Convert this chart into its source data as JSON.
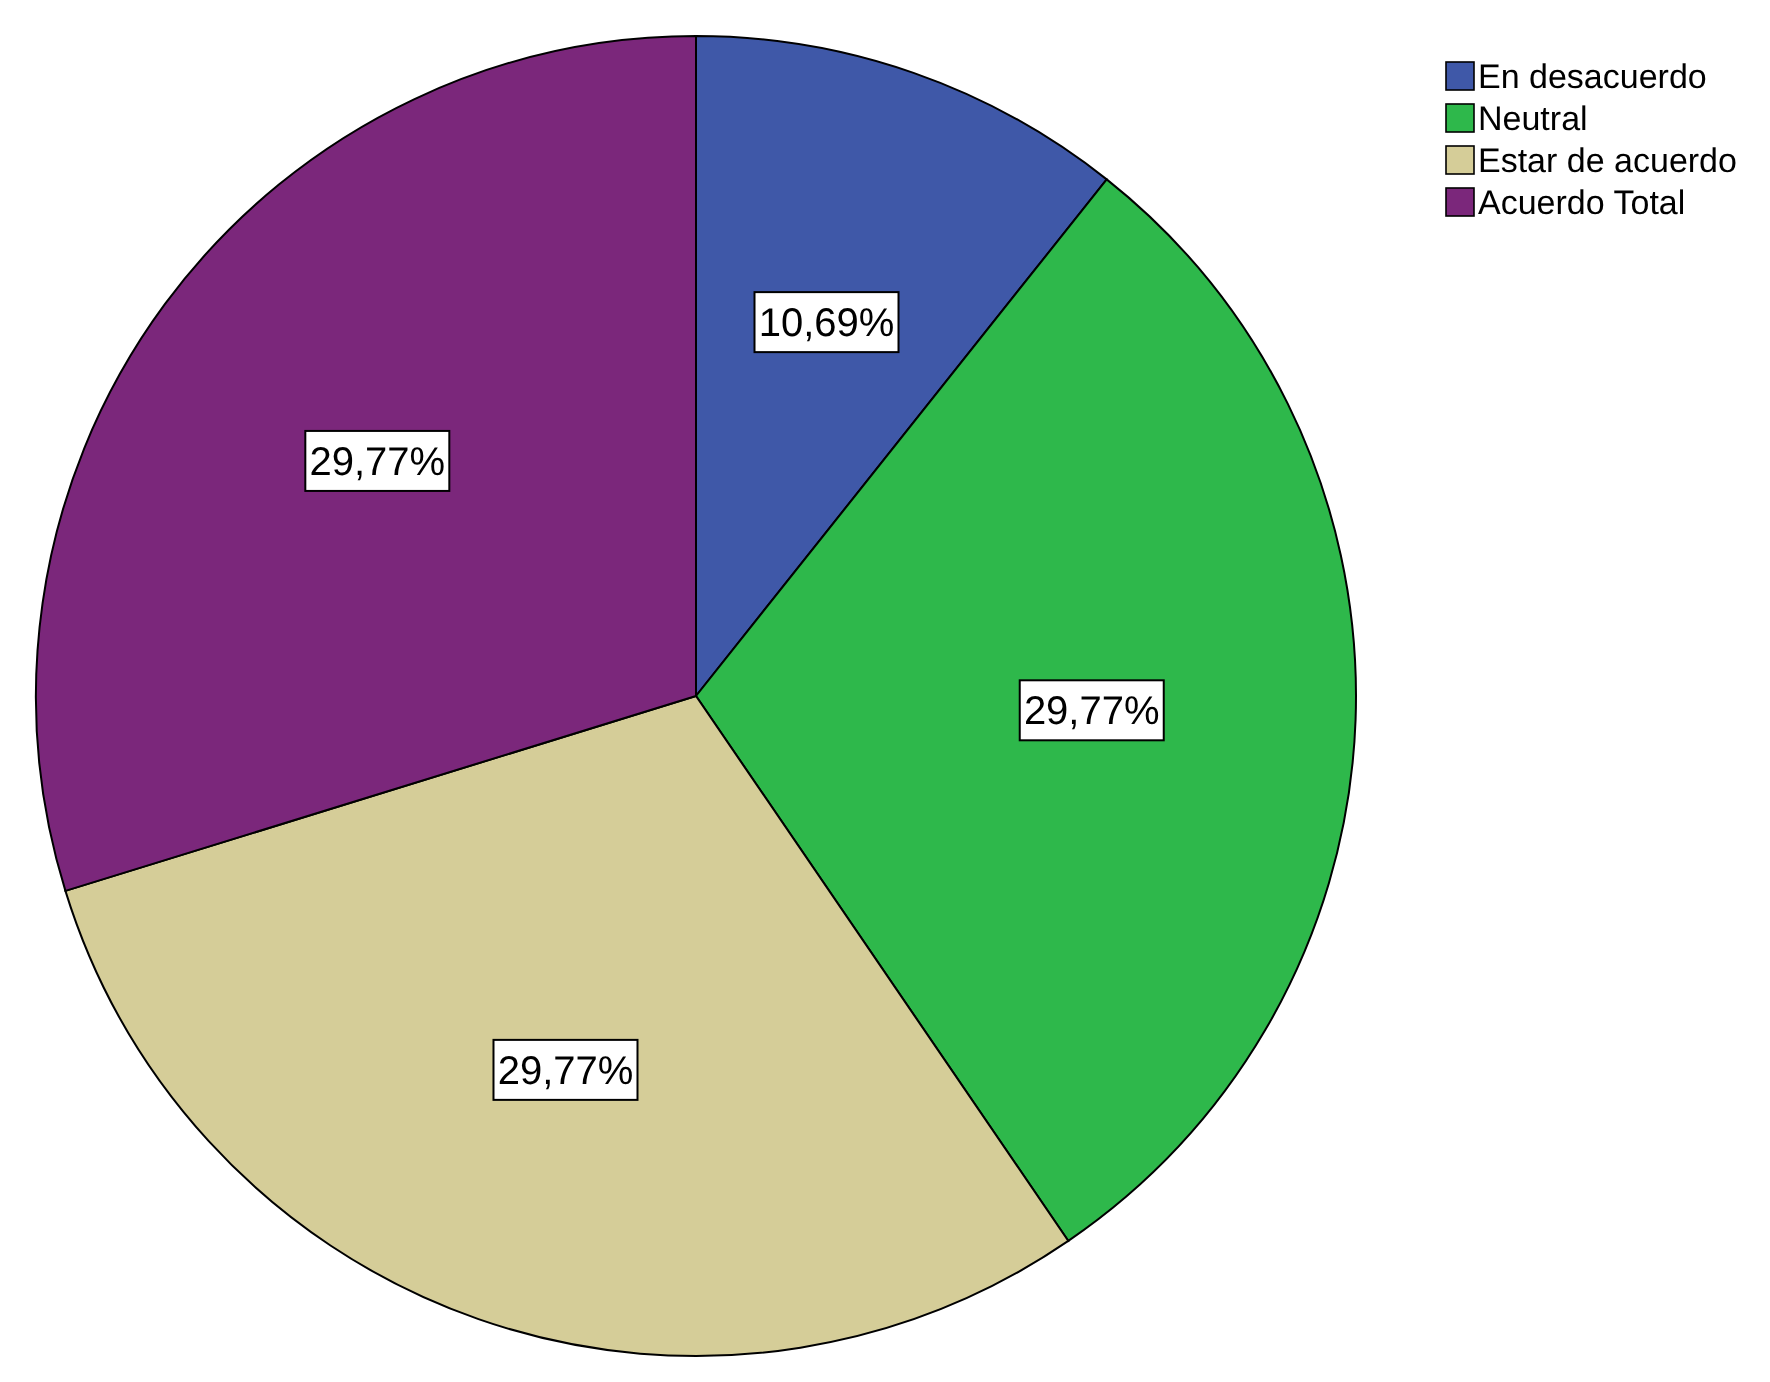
{
  "chart_data": {
    "type": "pie",
    "categories": [
      "En desacuerdo",
      "Neutral",
      "Estar de acuerdo",
      "Acuerdo Total"
    ],
    "values": [
      10.69,
      29.77,
      29.77,
      29.77
    ],
    "colors": [
      "#3f58a8",
      "#2eb84b",
      "#d5cd98",
      "#7b277b"
    ],
    "value_labels": [
      "10,69%",
      "29,77%",
      "29,77%",
      "29,77%"
    ],
    "legend": "top right"
  }
}
